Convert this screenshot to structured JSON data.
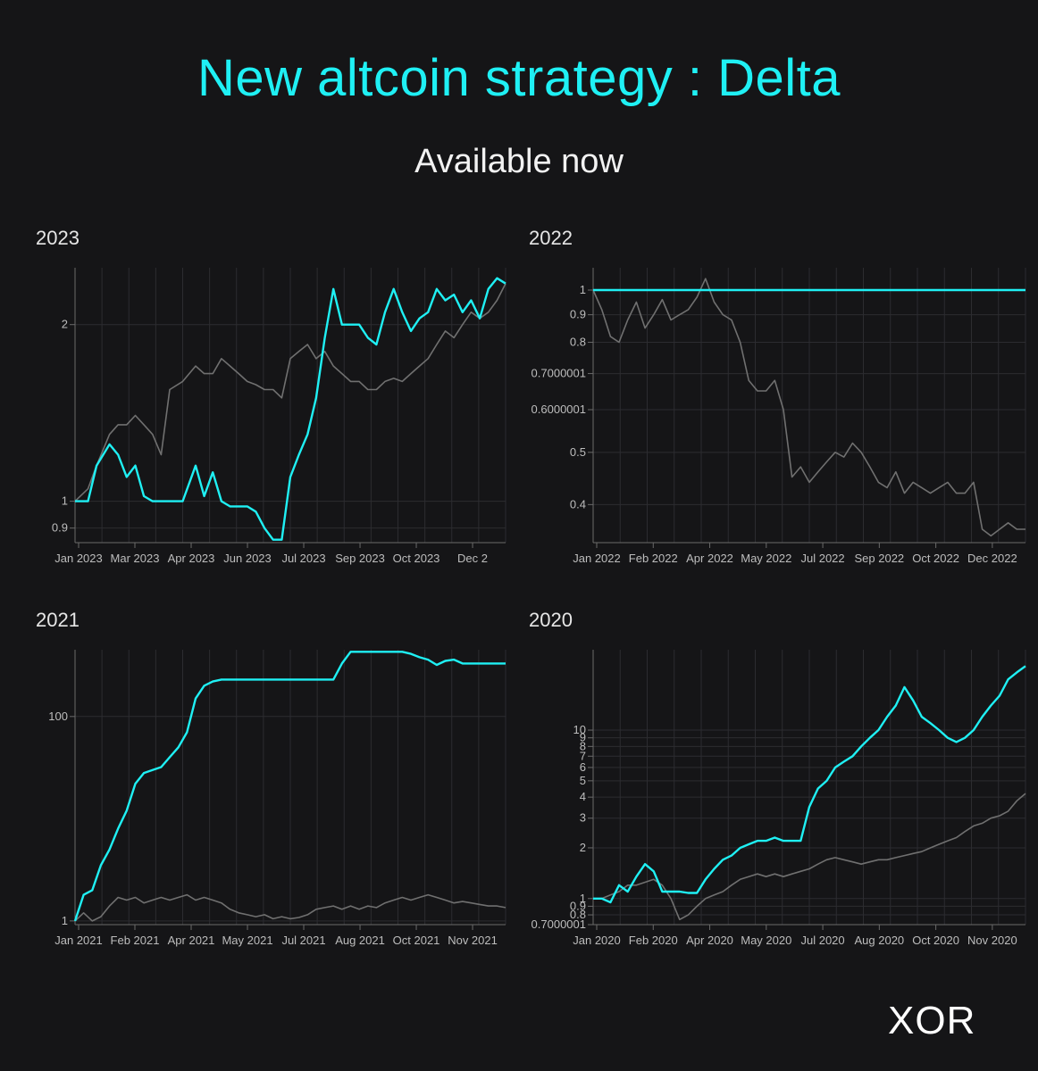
{
  "header": {
    "title": "New altcoin strategy : Delta",
    "subtitle": "Available now"
  },
  "brand": {
    "logo_text": "XOR"
  },
  "colors": {
    "strategy": "#1ff0f4",
    "benchmark": "#707070",
    "grid": "#2c2c30",
    "background": "#151517"
  },
  "chart_data": [
    {
      "type": "line",
      "title": "2023",
      "scale": "log",
      "ylim": [
        0.85,
        2.5
      ],
      "yticks": [
        0.9,
        1,
        2
      ],
      "ytick_labels": [
        "0.9",
        "1",
        "2"
      ],
      "x_ticks": [
        "Jan 2023",
        "Mar 2023",
        "Apr 2023",
        "Jun 2023",
        "Jul 2023",
        "Sep 2023",
        "Oct 2023",
        "Dec 2"
      ],
      "x": [
        0,
        0.03,
        0.05,
        0.08,
        0.1,
        0.12,
        0.14,
        0.16,
        0.18,
        0.2,
        0.22,
        0.25,
        0.28,
        0.3,
        0.32,
        0.34,
        0.36,
        0.38,
        0.4,
        0.42,
        0.44,
        0.46,
        0.48,
        0.5,
        0.52,
        0.54,
        0.56,
        0.58,
        0.6,
        0.62,
        0.64,
        0.66,
        0.68,
        0.7,
        0.72,
        0.74,
        0.76,
        0.78,
        0.8,
        0.82,
        0.84,
        0.86,
        0.88,
        0.9,
        0.92,
        0.94,
        0.96,
        0.98,
        1.0
      ],
      "series": [
        {
          "values": [
            1.0,
            1.0,
            1.15,
            1.25,
            1.2,
            1.1,
            1.15,
            1.02,
            1.0,
            1.0,
            1.0,
            1.0,
            1.15,
            1.02,
            1.12,
            1.0,
            0.98,
            0.98,
            0.98,
            0.96,
            0.9,
            0.86,
            0.86,
            1.1,
            1.2,
            1.3,
            1.5,
            1.9,
            2.3,
            2.0,
            2.0,
            2.0,
            1.9,
            1.85,
            2.1,
            2.3,
            2.1,
            1.95,
            2.05,
            2.1,
            2.3,
            2.2,
            2.25,
            2.1,
            2.2,
            2.05,
            2.3,
            2.4,
            2.35
          ]
        },
        {
          "values": [
            1.0,
            1.05,
            1.15,
            1.3,
            1.35,
            1.35,
            1.4,
            1.35,
            1.3,
            1.2,
            1.55,
            1.6,
            1.7,
            1.65,
            1.65,
            1.75,
            1.7,
            1.65,
            1.6,
            1.58,
            1.55,
            1.55,
            1.5,
            1.75,
            1.8,
            1.85,
            1.75,
            1.8,
            1.7,
            1.65,
            1.6,
            1.6,
            1.55,
            1.55,
            1.6,
            1.62,
            1.6,
            1.65,
            1.7,
            1.75,
            1.85,
            1.95,
            1.9,
            2.0,
            2.1,
            2.05,
            2.1,
            2.2,
            2.35
          ]
        }
      ]
    },
    {
      "type": "line",
      "title": "2022",
      "scale": "log",
      "ylim": [
        0.34,
        1.1
      ],
      "yticks": [
        0.4,
        0.5,
        0.6,
        0.7,
        0.8,
        0.9,
        1
      ],
      "ytick_labels": [
        "0.4",
        "0.5",
        "0.6000001",
        "0.7000001",
        "0.8",
        "0.9",
        "1"
      ],
      "x_ticks": [
        "Jan 2022",
        "Feb 2022",
        "Apr 2022",
        "May 2022",
        "Jul 2022",
        "Sep 2022",
        "Oct 2022",
        "Dec 2022"
      ],
      "x": [
        0,
        0.02,
        0.04,
        0.06,
        0.08,
        0.1,
        0.12,
        0.14,
        0.16,
        0.18,
        0.2,
        0.22,
        0.24,
        0.26,
        0.28,
        0.3,
        0.32,
        0.34,
        0.36,
        0.38,
        0.4,
        0.42,
        0.44,
        0.46,
        0.48,
        0.5,
        0.52,
        0.54,
        0.56,
        0.58,
        0.6,
        0.62,
        0.64,
        0.66,
        0.68,
        0.7,
        0.72,
        0.74,
        0.76,
        0.78,
        0.8,
        0.82,
        0.84,
        0.86,
        0.88,
        0.9,
        0.92,
        0.94,
        0.96,
        0.98,
        1.0
      ],
      "series": [
        {
          "values": [
            1.0,
            1.0,
            1.0,
            1.0,
            1.0,
            1.0,
            1.0,
            1.0,
            1.0,
            1.0,
            1.0,
            1.0,
            1.0,
            1.0,
            1.0,
            1.0,
            1.0,
            1.0,
            1.0,
            1.0,
            1.0,
            1.0,
            1.0,
            1.0,
            1.0,
            1.0,
            1.0,
            1.0,
            1.0,
            1.0,
            1.0,
            1.0,
            1.0,
            1.0,
            1.0,
            1.0,
            1.0,
            1.0,
            1.0,
            1.0,
            1.0,
            1.0,
            1.0,
            1.0,
            1.0,
            1.0,
            1.0,
            1.0,
            1.0,
            1.0,
            1.0
          ]
        },
        {
          "values": [
            1.0,
            0.92,
            0.82,
            0.8,
            0.88,
            0.95,
            0.85,
            0.9,
            0.96,
            0.88,
            0.9,
            0.92,
            0.97,
            1.05,
            0.95,
            0.9,
            0.88,
            0.8,
            0.68,
            0.65,
            0.65,
            0.68,
            0.6,
            0.45,
            0.47,
            0.44,
            0.46,
            0.48,
            0.5,
            0.49,
            0.52,
            0.5,
            0.47,
            0.44,
            0.43,
            0.46,
            0.42,
            0.44,
            0.43,
            0.42,
            0.43,
            0.44,
            0.42,
            0.42,
            0.44,
            0.36,
            0.35,
            0.36,
            0.37,
            0.36,
            0.36
          ]
        }
      ]
    },
    {
      "type": "line",
      "title": "2021",
      "scale": "log",
      "ylim": [
        0.92,
        450
      ],
      "yticks": [
        1,
        100
      ],
      "ytick_labels": [
        "1",
        "100"
      ],
      "x_ticks": [
        "Jan 2021",
        "Feb 2021",
        "Apr 2021",
        "May 2021",
        "Jul 2021",
        "Aug 2021",
        "Oct 2021",
        "Nov 2021"
      ],
      "x": [
        0,
        0.02,
        0.04,
        0.06,
        0.08,
        0.1,
        0.12,
        0.14,
        0.16,
        0.18,
        0.2,
        0.22,
        0.24,
        0.26,
        0.28,
        0.3,
        0.32,
        0.34,
        0.36,
        0.38,
        0.4,
        0.42,
        0.44,
        0.46,
        0.48,
        0.5,
        0.52,
        0.54,
        0.56,
        0.58,
        0.6,
        0.62,
        0.64,
        0.66,
        0.68,
        0.7,
        0.72,
        0.74,
        0.76,
        0.78,
        0.8,
        0.82,
        0.84,
        0.86,
        0.88,
        0.9,
        0.92,
        0.94,
        0.96,
        0.98,
        1.0
      ],
      "series": [
        {
          "values": [
            1.0,
            1.8,
            2.0,
            3.5,
            5.0,
            8.0,
            12.0,
            22.0,
            28.0,
            30.0,
            32.0,
            40.0,
            50.0,
            70.0,
            150.0,
            200.0,
            220.0,
            230.0,
            230.0,
            230.0,
            230.0,
            230.0,
            230.0,
            230.0,
            230.0,
            230.0,
            230.0,
            230.0,
            230.0,
            230.0,
            230.0,
            330.0,
            430.0,
            430.0,
            430.0,
            430.0,
            430.0,
            430.0,
            430.0,
            410.0,
            380.0,
            360.0,
            320.0,
            350.0,
            360.0,
            330.0,
            330.0,
            330.0,
            330.0,
            330.0,
            330.0
          ]
        },
        {
          "values": [
            1.0,
            1.2,
            1.0,
            1.1,
            1.4,
            1.7,
            1.6,
            1.7,
            1.5,
            1.6,
            1.7,
            1.6,
            1.7,
            1.8,
            1.6,
            1.7,
            1.6,
            1.5,
            1.3,
            1.2,
            1.15,
            1.1,
            1.15,
            1.05,
            1.1,
            1.05,
            1.08,
            1.15,
            1.3,
            1.35,
            1.4,
            1.3,
            1.4,
            1.3,
            1.4,
            1.35,
            1.5,
            1.6,
            1.7,
            1.6,
            1.7,
            1.8,
            1.7,
            1.6,
            1.5,
            1.55,
            1.5,
            1.45,
            1.4,
            1.4,
            1.35
          ]
        }
      ]
    },
    {
      "type": "line",
      "title": "2020",
      "scale": "log",
      "ylim": [
        0.7,
        30
      ],
      "yticks": [
        0.7,
        0.8,
        0.9,
        1,
        2,
        3,
        4,
        5,
        6,
        7,
        8,
        9,
        10
      ],
      "ytick_labels": [
        "0.7000001",
        "0.8",
        "0.9",
        "1",
        "2",
        "3",
        "4",
        "5",
        "6",
        "7",
        "8",
        "9",
        "10"
      ],
      "x_ticks": [
        "Jan 2020",
        "Feb 2020",
        "Apr 2020",
        "May 2020",
        "Jul 2020",
        "Aug 2020",
        "Oct 2020",
        "Nov 2020"
      ],
      "x": [
        0,
        0.02,
        0.04,
        0.06,
        0.08,
        0.1,
        0.12,
        0.14,
        0.16,
        0.18,
        0.2,
        0.22,
        0.24,
        0.26,
        0.28,
        0.3,
        0.32,
        0.34,
        0.36,
        0.38,
        0.4,
        0.42,
        0.44,
        0.46,
        0.48,
        0.5,
        0.52,
        0.54,
        0.56,
        0.58,
        0.6,
        0.62,
        0.64,
        0.66,
        0.68,
        0.7,
        0.72,
        0.74,
        0.76,
        0.78,
        0.8,
        0.82,
        0.84,
        0.86,
        0.88,
        0.9,
        0.92,
        0.94,
        0.96,
        0.98,
        1.0
      ],
      "series": [
        {
          "values": [
            1.0,
            1.0,
            0.95,
            1.2,
            1.1,
            1.35,
            1.6,
            1.45,
            1.1,
            1.1,
            1.1,
            1.08,
            1.08,
            1.3,
            1.5,
            1.7,
            1.8,
            2.0,
            2.1,
            2.2,
            2.2,
            2.3,
            2.2,
            2.2,
            2.2,
            3.5,
            4.5,
            5.0,
            6.0,
            6.5,
            7.0,
            8.0,
            9.0,
            10.0,
            12.0,
            14.0,
            18.0,
            15.0,
            12.0,
            11.0,
            10.0,
            9.0,
            8.5,
            9.0,
            10.0,
            12.0,
            14.0,
            16.0,
            20.0,
            22.0,
            24.0
          ]
        },
        {
          "values": [
            1.0,
            1.0,
            1.05,
            1.1,
            1.2,
            1.2,
            1.25,
            1.3,
            1.2,
            1.0,
            0.75,
            0.8,
            0.9,
            1.0,
            1.05,
            1.1,
            1.2,
            1.3,
            1.35,
            1.4,
            1.35,
            1.4,
            1.35,
            1.4,
            1.45,
            1.5,
            1.6,
            1.7,
            1.75,
            1.7,
            1.65,
            1.6,
            1.65,
            1.7,
            1.7,
            1.75,
            1.8,
            1.85,
            1.9,
            2.0,
            2.1,
            2.2,
            2.3,
            2.5,
            2.7,
            2.8,
            3.0,
            3.1,
            3.3,
            3.8,
            4.2
          ]
        }
      ]
    }
  ]
}
